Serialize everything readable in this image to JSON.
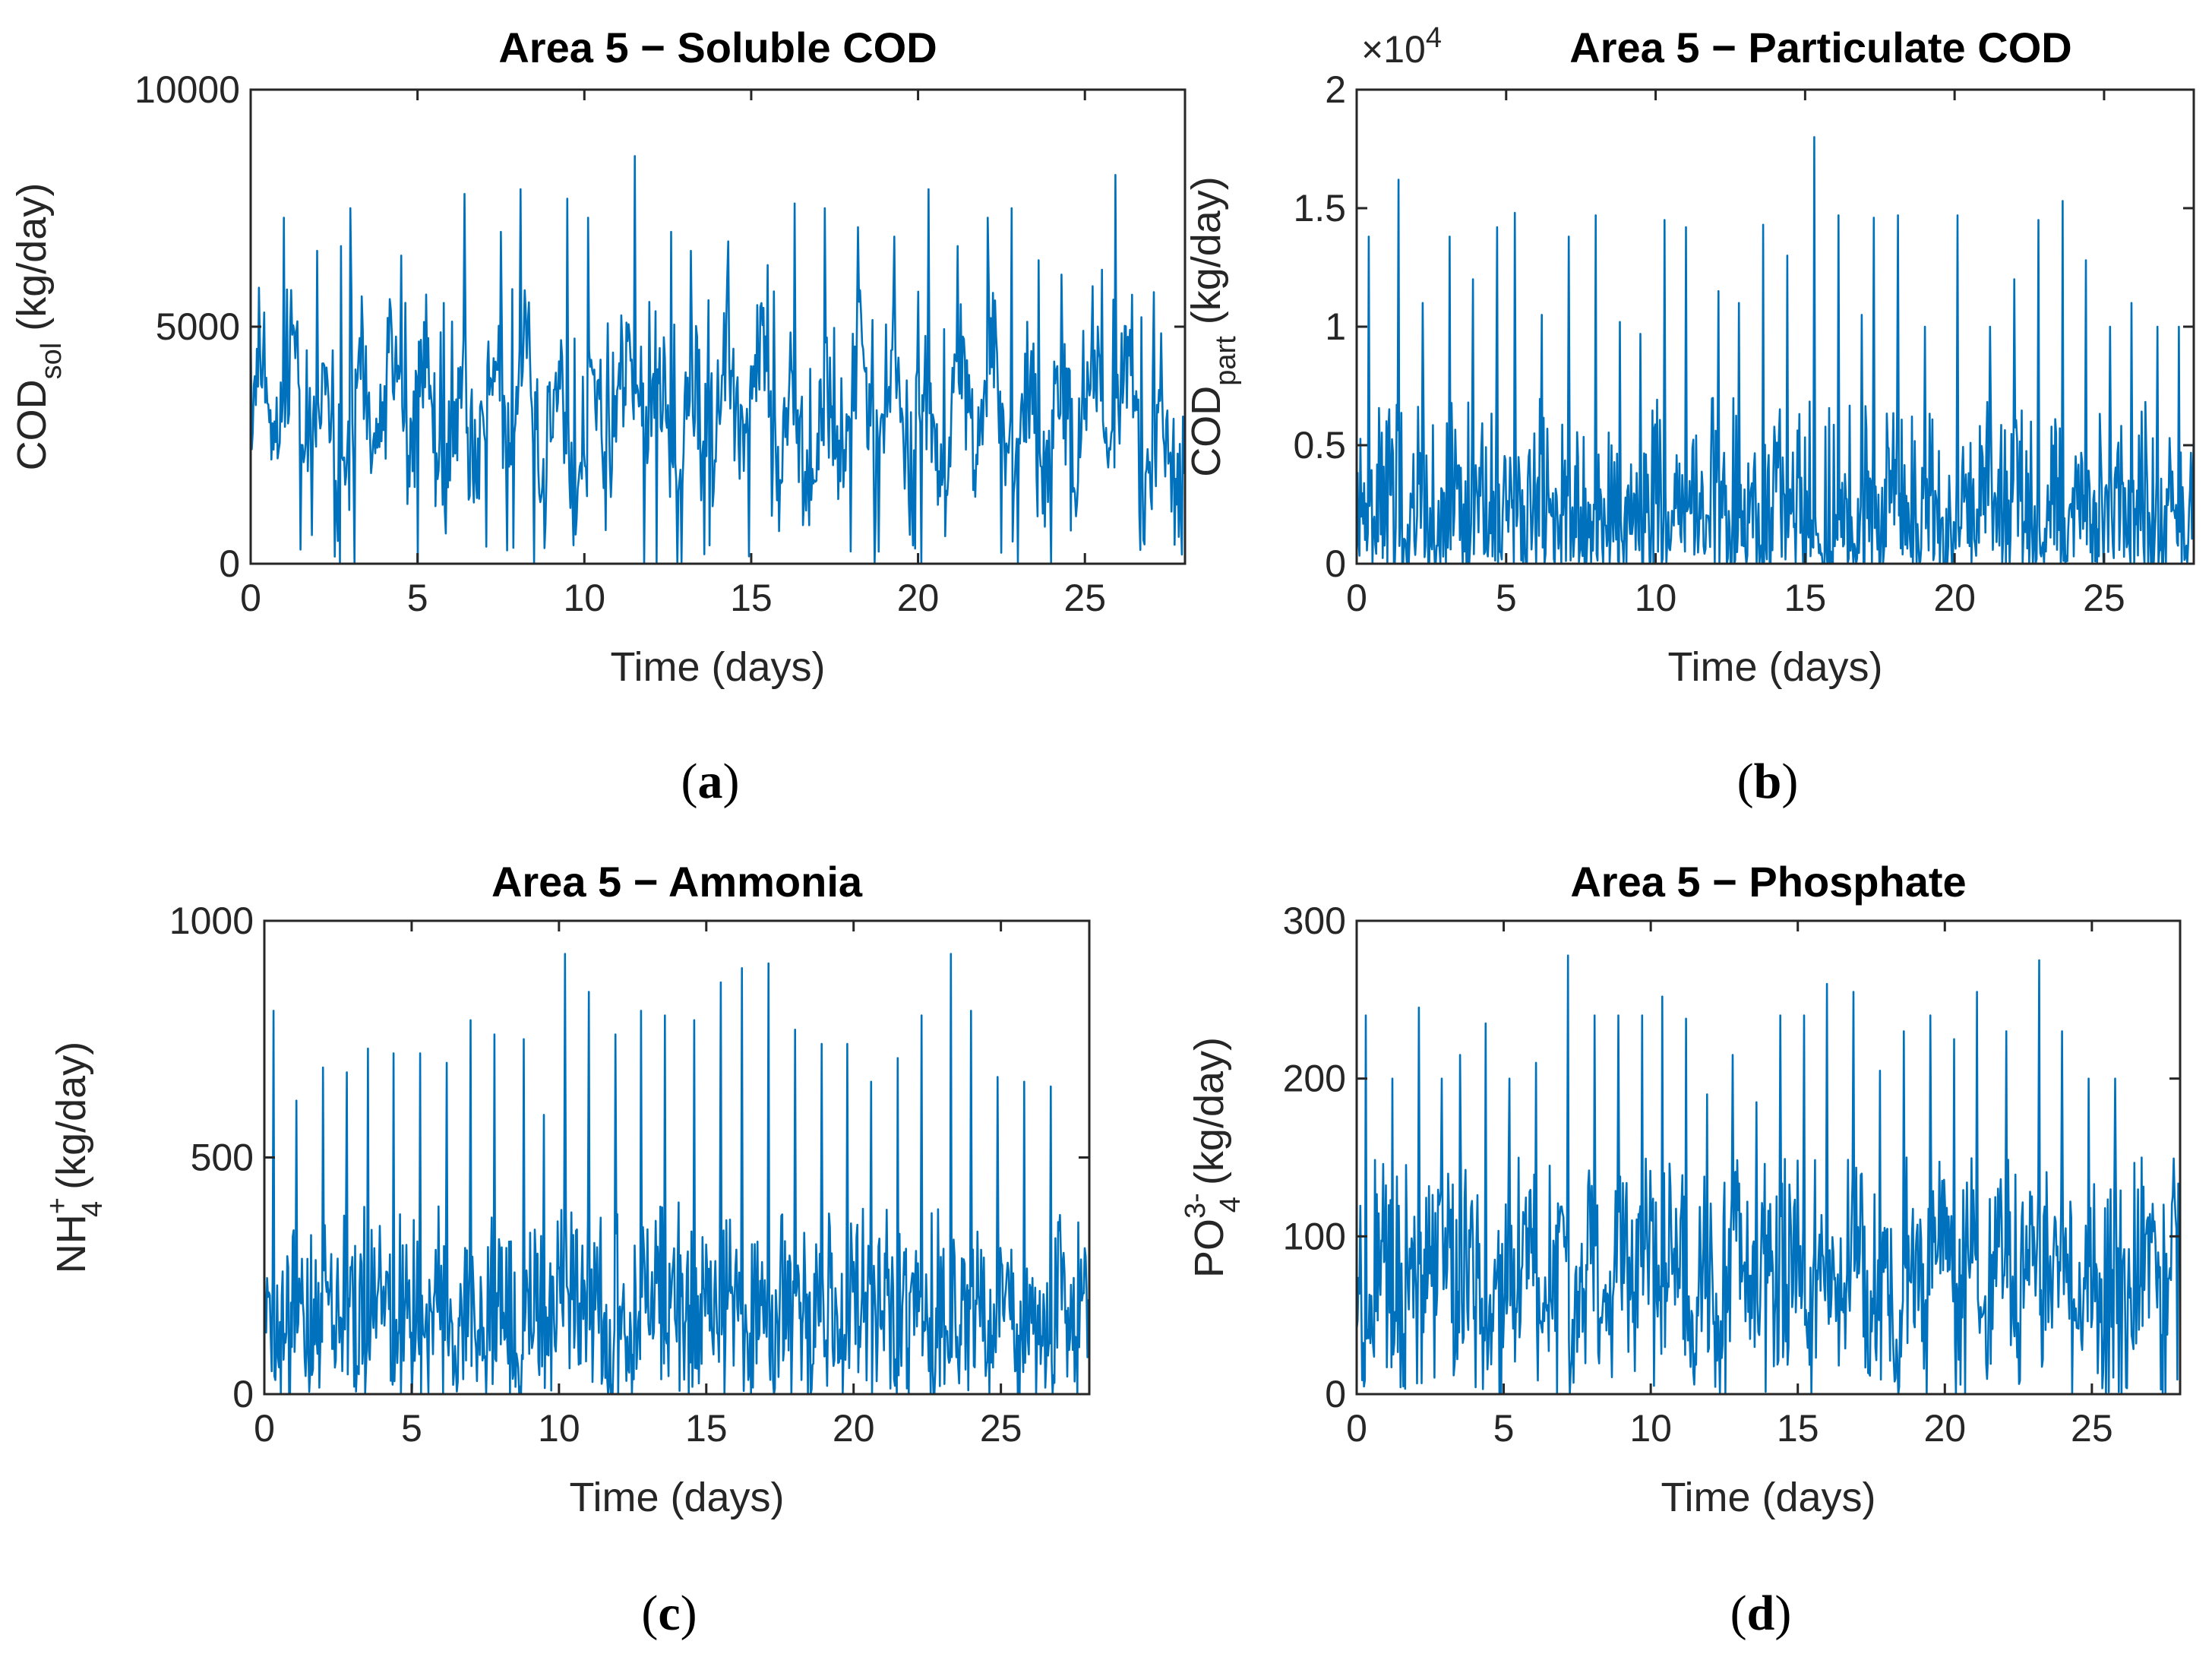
{
  "chart_data": [
    {
      "type": "line",
      "panel_label": "a",
      "title": "Area 5 − Soluble COD",
      "xlabel": "Time (days)",
      "ylabel": "COD",
      "ylabel_sub": "sol",
      "ylabel_unit": " (kg/day)",
      "xlim": [
        0,
        28
      ],
      "ylim": [
        0,
        10000
      ],
      "xticks": [
        0,
        5,
        10,
        15,
        20,
        25
      ],
      "xtick_labels": [
        "0",
        "5",
        "10",
        "15",
        "20",
        "25"
      ],
      "yticks": [
        0,
        5000,
        10000
      ],
      "ytick_labels": [
        "0",
        "5000",
        "10000"
      ],
      "series_color": "#0072BD",
      "series_name": "Soluble COD",
      "baseline": 3000,
      "noise": 700,
      "diurnal": 1100,
      "peak_scale": 2800,
      "peak_min": 3000,
      "trough_prob": 0.02,
      "peaks": [
        [
          0.4,
          5300
        ],
        [
          1.0,
          7300
        ],
        [
          2.0,
          6600
        ],
        [
          2.7,
          6700
        ],
        [
          3.0,
          7500
        ],
        [
          4.5,
          6500
        ],
        [
          5.2,
          5100
        ],
        [
          5.8,
          5500
        ],
        [
          6.4,
          7800
        ],
        [
          7.5,
          7000
        ],
        [
          8.1,
          7900
        ],
        [
          9.5,
          7700
        ],
        [
          10.1,
          7300
        ],
        [
          11.5,
          8600
        ],
        [
          12.6,
          7000
        ],
        [
          13.2,
          6600
        ],
        [
          14.3,
          6800
        ],
        [
          15.5,
          6300
        ],
        [
          16.3,
          7600
        ],
        [
          17.2,
          7500
        ],
        [
          18.2,
          7100
        ],
        [
          19.3,
          6900
        ],
        [
          20.3,
          7900
        ],
        [
          21.2,
          6700
        ],
        [
          22.1,
          7300
        ],
        [
          22.8,
          7500
        ],
        [
          23.6,
          6400
        ],
        [
          24.3,
          6100
        ],
        [
          25.5,
          6200
        ],
        [
          25.9,
          8200
        ],
        [
          26.7,
          5200
        ]
      ],
      "troughs": [
        [
          1.5,
          300
        ],
        [
          3.1,
          0
        ],
        [
          5.0,
          0
        ],
        [
          8.5,
          0
        ],
        [
          11.8,
          0
        ],
        [
          13.6,
          200
        ],
        [
          18.7,
          0
        ],
        [
          20.1,
          0
        ],
        [
          24.0,
          0
        ],
        [
          27.7,
          400
        ]
      ],
      "seed": 11
    },
    {
      "type": "line",
      "panel_label": "b",
      "title": "Area 5 − Particulate COD",
      "exponent_label": "×10",
      "exponent_power": "4",
      "xlabel": "Time (days)",
      "ylabel": "COD",
      "ylabel_sub": "part",
      "ylabel_unit": " (kg/day)",
      "xlim": [
        0,
        28
      ],
      "ylim": [
        0,
        2
      ],
      "xticks": [
        0,
        5,
        10,
        15,
        20,
        25
      ],
      "xtick_labels": [
        "0",
        "5",
        "10",
        "15",
        "20",
        "25"
      ],
      "yticks": [
        0,
        0.5,
        1,
        1.5,
        2
      ],
      "ytick_labels": [
        "0",
        "0.5",
        "1",
        "1.5",
        "2"
      ],
      "series_color": "#0072BD",
      "series_name": "Particulate COD",
      "baseline": 0.2,
      "noise": 0.15,
      "diurnal": 0.08,
      "peak_scale": 0.25,
      "peak_min": 0.45,
      "trough_prob": 0.06,
      "peaks": [
        [
          0.4,
          1.38
        ],
        [
          1.4,
          1.62
        ],
        [
          2.2,
          1.1
        ],
        [
          3.1,
          1.38
        ],
        [
          3.9,
          1.2
        ],
        [
          4.7,
          1.42
        ],
        [
          5.3,
          1.48
        ],
        [
          6.2,
          1.05
        ],
        [
          7.1,
          1.38
        ],
        [
          8.0,
          1.47
        ],
        [
          8.8,
          1.02
        ],
        [
          9.5,
          0.97
        ],
        [
          10.3,
          1.45
        ],
        [
          11.0,
          1.42
        ],
        [
          12.1,
          1.15
        ],
        [
          12.8,
          1.1
        ],
        [
          13.6,
          1.43
        ],
        [
          14.4,
          1.3
        ],
        [
          15.3,
          1.8
        ],
        [
          16.1,
          1.47
        ],
        [
          16.9,
          1.05
        ],
        [
          17.3,
          1.46
        ],
        [
          18.1,
          1.47
        ],
        [
          19.0,
          1.0
        ],
        [
          20.1,
          1.47
        ],
        [
          21.2,
          1.0
        ],
        [
          22.0,
          1.2
        ],
        [
          22.8,
          1.45
        ],
        [
          23.6,
          1.53
        ],
        [
          24.4,
          1.28
        ],
        [
          25.2,
          1.0
        ],
        [
          25.9,
          1.1
        ],
        [
          26.8,
          1.0
        ],
        [
          27.5,
          1.0
        ]
      ],
      "troughs": [
        [
          2.8,
          0
        ],
        [
          6.0,
          0
        ],
        [
          9.8,
          0
        ],
        [
          12.5,
          0
        ],
        [
          17.0,
          0
        ],
        [
          19.5,
          0
        ],
        [
          22.5,
          0
        ],
        [
          26.0,
          0
        ]
      ],
      "seed": 23
    },
    {
      "type": "line",
      "panel_label": "c",
      "title": "Area 5 − Ammonia",
      "xlabel": "Time (days)",
      "ylabel": "NH",
      "ylabel_sub": "4",
      "ylabel_sup": "+",
      "ylabel_unit": " (kg/day)",
      "xlim": [
        0,
        28
      ],
      "ylim": [
        0,
        1000
      ],
      "xticks": [
        0,
        5,
        10,
        15,
        20,
        25
      ],
      "xtick_labels": [
        "0",
        "5",
        "10",
        "15",
        "20",
        "25"
      ],
      "yticks": [
        0,
        500,
        1000
      ],
      "ytick_labels": [
        "0",
        "500",
        "1000"
      ],
      "series_color": "#0072BD",
      "series_name": "Ammonia",
      "baseline": 150,
      "noise": 80,
      "diurnal": 50,
      "peak_scale": 150,
      "peak_min": 250,
      "trough_prob": 0.05,
      "peaks": [
        [
          0.3,
          810
        ],
        [
          1.1,
          620
        ],
        [
          2.0,
          690
        ],
        [
          2.8,
          680
        ],
        [
          3.5,
          730
        ],
        [
          4.4,
          720
        ],
        [
          5.3,
          720
        ],
        [
          6.2,
          700
        ],
        [
          7.0,
          790
        ],
        [
          7.8,
          760
        ],
        [
          8.8,
          750
        ],
        [
          9.5,
          590
        ],
        [
          10.2,
          930
        ],
        [
          11.0,
          850
        ],
        [
          11.9,
          760
        ],
        [
          12.8,
          810
        ],
        [
          13.6,
          800
        ],
        [
          14.6,
          790
        ],
        [
          15.5,
          870
        ],
        [
          16.2,
          900
        ],
        [
          17.1,
          910
        ],
        [
          18.0,
          770
        ],
        [
          18.9,
          740
        ],
        [
          19.8,
          740
        ],
        [
          20.6,
          660
        ],
        [
          21.5,
          710
        ],
        [
          22.3,
          800
        ],
        [
          23.3,
          930
        ],
        [
          24.0,
          810
        ],
        [
          24.9,
          670
        ],
        [
          25.8,
          660
        ],
        [
          26.7,
          650
        ]
      ],
      "troughs": [
        [
          5.0,
          0
        ],
        [
          12.0,
          0
        ],
        [
          17.3,
          0
        ],
        [
          26.2,
          0
        ],
        [
          27.6,
          0
        ]
      ],
      "seed": 37
    },
    {
      "type": "line",
      "panel_label": "d",
      "title": "Area 5 − Phosphate",
      "xlabel": "Time (days)",
      "ylabel": "PO",
      "ylabel_sub": "4",
      "ylabel_sup": "3-",
      "ylabel_unit": " (kg/day)",
      "xlim": [
        0,
        28
      ],
      "ylim": [
        0,
        300
      ],
      "xticks": [
        0,
        5,
        10,
        15,
        20,
        25
      ],
      "xtick_labels": [
        "0",
        "5",
        "10",
        "15",
        "20",
        "25"
      ],
      "yticks": [
        0,
        100,
        200,
        300
      ],
      "ytick_labels": [
        "0",
        "100",
        "200",
        "300"
      ],
      "series_color": "#0072BD",
      "series_name": "Phosphate",
      "baseline": 70,
      "noise": 25,
      "diurnal": 25,
      "peak_scale": 40,
      "peak_min": 110,
      "trough_prob": 0.03,
      "peaks": [
        [
          0.3,
          240
        ],
        [
          1.2,
          200
        ],
        [
          2.1,
          245
        ],
        [
          2.9,
          200
        ],
        [
          3.5,
          215
        ],
        [
          4.4,
          235
        ],
        [
          5.2,
          200
        ],
        [
          6.1,
          210
        ],
        [
          7.2,
          278
        ],
        [
          8.1,
          240
        ],
        [
          8.9,
          240
        ],
        [
          9.7,
          240
        ],
        [
          10.4,
          252
        ],
        [
          11.2,
          238
        ],
        [
          11.9,
          190
        ],
        [
          12.8,
          215
        ],
        [
          13.6,
          185
        ],
        [
          14.4,
          240
        ],
        [
          15.2,
          240
        ],
        [
          16.0,
          260
        ],
        [
          16.9,
          255
        ],
        [
          17.8,
          205
        ],
        [
          18.6,
          230
        ],
        [
          19.5,
          240
        ],
        [
          20.3,
          225
        ],
        [
          21.1,
          255
        ],
        [
          22.1,
          230
        ],
        [
          23.2,
          275
        ],
        [
          24.0,
          230
        ],
        [
          24.9,
          200
        ],
        [
          25.8,
          200
        ],
        [
          26.7,
          150
        ]
      ],
      "troughs": [
        [
          4.9,
          0
        ],
        [
          6.8,
          0
        ],
        [
          20.7,
          0
        ],
        [
          26.0,
          0
        ],
        [
          27.5,
          0
        ]
      ],
      "seed": 53
    }
  ]
}
